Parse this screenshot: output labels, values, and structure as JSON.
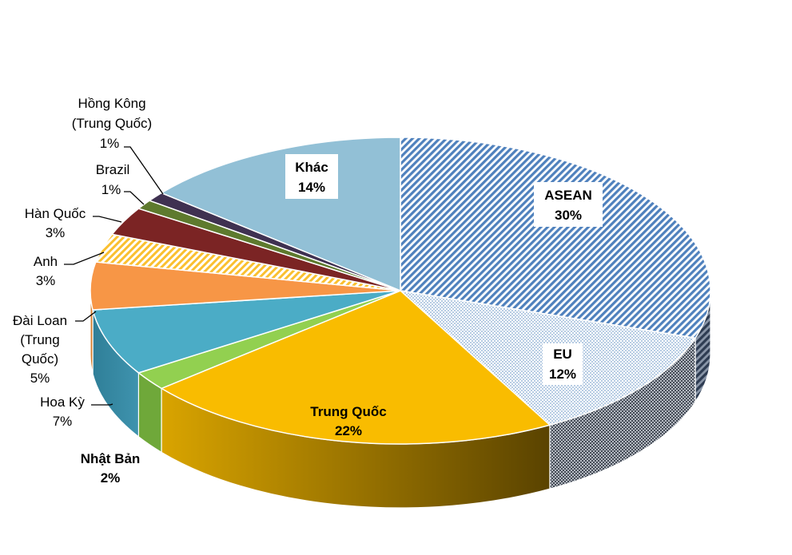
{
  "chart_data": {
    "type": "pie",
    "title": "",
    "labels": [
      "ASEAN",
      "EU",
      "Trung Quốc",
      "Nhật Bản",
      "Hoa Kỳ",
      "Đài Loan (Trung Quốc)",
      "Anh",
      "Hàn Quốc",
      "Brazil",
      "Hồng Kông (Trung Quốc)",
      "Khác"
    ],
    "values": [
      30,
      12,
      22,
      2,
      7,
      5,
      3,
      3,
      1,
      1,
      14
    ],
    "percent_labels": [
      "30%",
      "12%",
      "22%",
      "2%",
      "7%",
      "5%",
      "3%",
      "3%",
      "1%",
      "1%",
      "14%"
    ],
    "display_labels": [
      [
        "ASEAN"
      ],
      [
        "EU"
      ],
      [
        "Trung Quốc"
      ],
      [
        "Nhật Bản"
      ],
      [
        "Hoa Kỳ"
      ],
      [
        "Đài Loan",
        "(Trung",
        "Quốc)"
      ],
      [
        "Anh"
      ],
      [
        "Hàn Quốc"
      ],
      [
        "Brazil"
      ],
      [
        "Hồng Kông",
        "(Trung Quốc)"
      ],
      [
        "Khác"
      ]
    ],
    "colors": [
      "#4f81bd",
      "#b9cde5",
      "#f9bc00",
      "#92d050",
      "#4bacc6",
      "#f79646",
      "#fac030",
      "#7b2424",
      "#5e7a2e",
      "#3f3151",
      "#92c0d6"
    ],
    "fills": [
      "diagonal-stripes",
      "dotted",
      "solid",
      "solid",
      "solid",
      "solid",
      "diagonal-stripes",
      "solid",
      "solid",
      "solid",
      "solid"
    ],
    "style": "3d-pie"
  }
}
